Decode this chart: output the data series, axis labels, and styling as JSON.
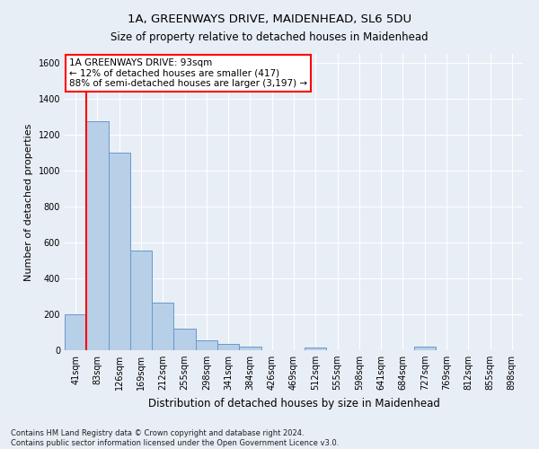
{
  "title": "1A, GREENWAYS DRIVE, MAIDENHEAD, SL6 5DU",
  "subtitle": "Size of property relative to detached houses in Maidenhead",
  "xlabel": "Distribution of detached houses by size in Maidenhead",
  "ylabel": "Number of detached properties",
  "bar_labels": [
    "41sqm",
    "83sqm",
    "126sqm",
    "169sqm",
    "212sqm",
    "255sqm",
    "298sqm",
    "341sqm",
    "384sqm",
    "426sqm",
    "469sqm",
    "512sqm",
    "555sqm",
    "598sqm",
    "641sqm",
    "684sqm",
    "727sqm",
    "769sqm",
    "812sqm",
    "855sqm",
    "898sqm"
  ],
  "bar_values": [
    200,
    1275,
    1100,
    555,
    265,
    120,
    55,
    33,
    20,
    0,
    0,
    15,
    0,
    0,
    0,
    0,
    20,
    0,
    0,
    0,
    0
  ],
  "bar_color": "#b8cfe8",
  "bar_edge_color": "#6699cc",
  "property_line_x": 0.5,
  "ylim": [
    0,
    1650
  ],
  "yticks": [
    0,
    200,
    400,
    600,
    800,
    1000,
    1200,
    1400,
    1600
  ],
  "annotation_box_text": "1A GREENWAYS DRIVE: 93sqm\n← 12% of detached houses are smaller (417)\n88% of semi-detached houses are larger (3,197) →",
  "footer_line1": "Contains HM Land Registry data © Crown copyright and database right 2024.",
  "footer_line2": "Contains public sector information licensed under the Open Government Licence v3.0.",
  "bg_color": "#e8eef5",
  "plot_bg_color": "#e8eef5",
  "grid_color": "white",
  "title_fontsize": 9.5,
  "subtitle_fontsize": 8.5,
  "ylabel_fontsize": 8,
  "xlabel_fontsize": 8.5,
  "tick_fontsize": 7,
  "annot_fontsize": 7.5,
  "footer_fontsize": 6
}
